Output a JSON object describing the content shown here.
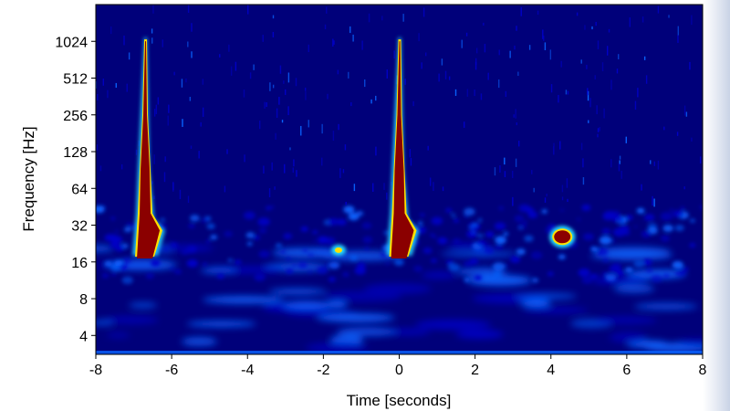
{
  "chart_data": {
    "type": "heatmap",
    "title": "",
    "xlabel": "Time [seconds]",
    "ylabel": "Frequency [Hz]",
    "xlim": [
      -8,
      8
    ],
    "ylim_hz": [
      2.8,
      2048
    ],
    "y_scale": "log2",
    "x_ticks": [
      -8,
      -6,
      -4,
      -2,
      0,
      2,
      4,
      6,
      8
    ],
    "x_tick_labels": [
      "-8",
      "-6",
      "-4",
      "-2",
      "0",
      "2",
      "4",
      "6",
      "8"
    ],
    "y_ticks": [
      4,
      8,
      16,
      32,
      64,
      128,
      256,
      512,
      1024
    ],
    "y_tick_labels": [
      "4",
      "8",
      "16",
      "32",
      "64",
      "128",
      "256",
      "512",
      "1024"
    ],
    "colormap": "jet",
    "colors": {
      "background": "#00007a",
      "low": "#0000c8",
      "mid": "#0a64ff",
      "cyan": "#28e0ff",
      "yellow": "#ffe000",
      "high": "#8b0000"
    },
    "events": [
      {
        "name": "chirp",
        "t": -6.7,
        "f_low": 18,
        "f_high": 1100,
        "intensity": "high"
      },
      {
        "name": "chirp",
        "t": 0.0,
        "f_low": 18,
        "f_high": 1100,
        "intensity": "high"
      },
      {
        "name": "blob",
        "t": 4.3,
        "f_low": 22,
        "f_high": 30,
        "intensity": "high"
      },
      {
        "name": "spot",
        "t": -1.6,
        "f_low": 19,
        "f_high": 21,
        "intensity": "medium"
      }
    ]
  }
}
